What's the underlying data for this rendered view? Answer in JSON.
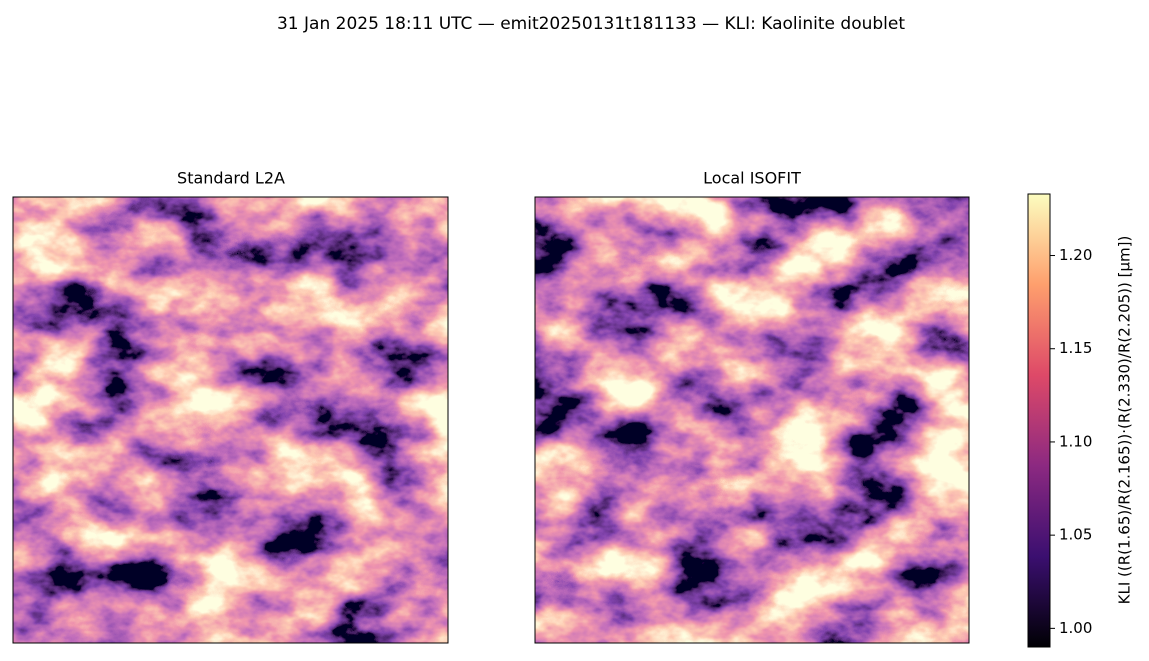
{
  "chart_data": {
    "type": "image",
    "title": "31 Jan 2025 18:11 UTC — emit20250131t181133 — KLI: Kaolinite doublet",
    "panels": [
      {
        "title": "Standard L2A"
      },
      {
        "title": "Local ISOFIT"
      }
    ],
    "colorbar": {
      "label": "KLI  ((R(1.65)/R(2.165))·(R(2.330)/R(2.205))  [µm])",
      "colormap": "magma",
      "clim": [
        0.99,
        1.233
      ],
      "ticks": [
        {
          "value": 1.0,
          "label": "1.00"
        },
        1.05,
        {
          "value": 1.1,
          "label": "1.10"
        },
        1.15,
        {
          "value": 1.2,
          "label": "1.20"
        }
      ]
    }
  }
}
